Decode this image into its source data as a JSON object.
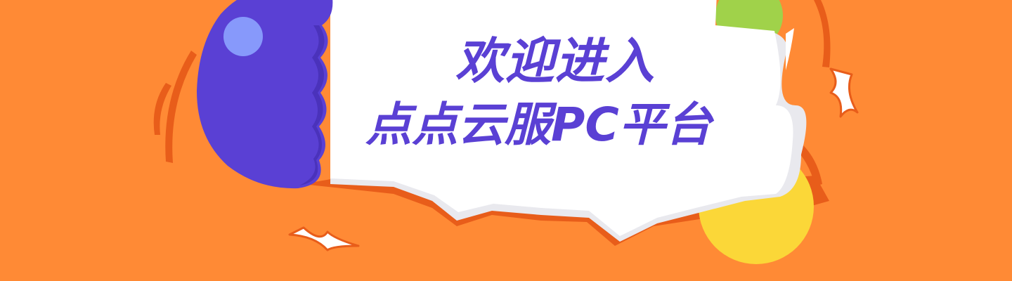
{
  "banner": {
    "line1": "欢迎进入",
    "line2": "点点云服PC平台"
  },
  "colors": {
    "background": "#ff8a35",
    "shadow": "#e85d1a",
    "bubble": "#ffffff",
    "bubble_shade": "#e9e9ee",
    "purple": "#5a40d4",
    "purple_highlight": "#8799fb",
    "green": "#a0d24a",
    "yellow": "#fbd738",
    "text": "#5a40d4"
  }
}
